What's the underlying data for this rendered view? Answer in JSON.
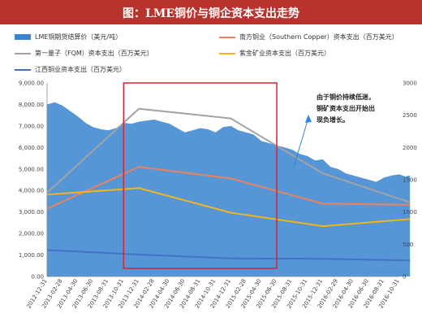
{
  "header": {
    "title": "图：LME铜价与铜企资本支出走势"
  },
  "chart_data": {
    "type": "area",
    "title": "图：LME铜价与铜企资本支出走势",
    "x_ticks": [
      "2012-12-31",
      "2013-02-28",
      "2013-04-30",
      "2013-06-30",
      "2013-08-31",
      "2013-10-31",
      "2013-12-31",
      "2014-02-28",
      "2014-04-30",
      "2014-06-30",
      "2014-08-31",
      "2014-10-31",
      "2014-12-31",
      "2015-02-28",
      "2015-04-30",
      "2015-06-30",
      "2015-08-31",
      "2015-10-31",
      "2015-12-31",
      "2016-02-29",
      "2016-04-30",
      "2016-06-30",
      "2016-08-31",
      "2016-10-31"
    ],
    "y_left_ticks": [
      "0.00",
      "1,000.00",
      "2,000.00",
      "3,000.00",
      "4,000.00",
      "5,000.00",
      "6,000.00",
      "7,000.00",
      "8,000.00",
      "9,000.00"
    ],
    "y_right_ticks": [
      "0",
      "500",
      "1000",
      "1500",
      "2000",
      "2500",
      "3000"
    ],
    "ylim_left": [
      0,
      9000
    ],
    "ylim_right": [
      0,
      3000
    ],
    "series": [
      {
        "name": "LME铜期货结算价（美元/吨）",
        "axis": "left",
        "style": "area",
        "color": "#3a84cf",
        "x": [
          0,
          0.5,
          1,
          1.5,
          2,
          2.5,
          3,
          3.5,
          4,
          4.5,
          5,
          5.5,
          6,
          6.5,
          7,
          7.5,
          8,
          8.5,
          9,
          9.5,
          10,
          10.5,
          11,
          11.5,
          12,
          12.5,
          13,
          13.5,
          14,
          14.5,
          15,
          15.5,
          16,
          16.5,
          17,
          17.5,
          18,
          18.5,
          19,
          19.5,
          20,
          20.5,
          21,
          21.5,
          22,
          22.5,
          23,
          23.2,
          23.4,
          23.7
        ],
        "values": [
          8000,
          8100,
          7950,
          7700,
          7450,
          7150,
          6950,
          6850,
          6800,
          6900,
          7150,
          7100,
          7200,
          7250,
          7300,
          7200,
          7100,
          6900,
          6700,
          6800,
          6900,
          6850,
          6700,
          6950,
          7000,
          6800,
          6700,
          6600,
          6300,
          6200,
          6100,
          6000,
          5900,
          5700,
          5600,
          5400,
          5450,
          5100,
          5000,
          4800,
          4700,
          4600,
          4500,
          4400,
          4600,
          4700,
          4750,
          4700,
          4650,
          4700
        ]
      },
      {
        "name": "南方铜业（Southern Copper）资本支出（百万美元）",
        "axis": "right",
        "style": "line",
        "color": "#e8835e",
        "x": [
          0,
          6,
          12,
          18,
          23.7
        ],
        "values": [
          1050,
          1700,
          1520,
          1130,
          1110
        ]
      },
      {
        "name": "第一量子（FQM）资本支出（百万美元）",
        "axis": "right",
        "style": "line",
        "color": "#a3a3a3",
        "x": [
          0,
          6,
          12,
          18,
          23.7
        ],
        "values": [
          1300,
          2600,
          2450,
          1600,
          1150
        ]
      },
      {
        "name": "紫金矿业资本支出（百万美元）",
        "axis": "right",
        "style": "line",
        "color": "#f2b51c",
        "x": [
          0,
          6,
          12,
          18,
          23.7
        ],
        "values": [
          1270,
          1370,
          990,
          780,
          890
        ]
      },
      {
        "name": "江西铜业资本支出（百万美元）",
        "axis": "right",
        "style": "line",
        "color": "#4472c4",
        "x": [
          0,
          6,
          12,
          18,
          23.7
        ],
        "values": [
          410,
          340,
          280,
          275,
          250
        ]
      }
    ],
    "annotation": "由于铜价持续低迷，铜矿资本支出开始出现负增长。",
    "annotation_lines": [
      "由于铜价持续低迷，",
      "铜矿资本支出开始出",
      "现负增长。"
    ],
    "highlight_box": {
      "x_from": "2013-10-31",
      "x_to": "2015-06-30",
      "color": "#d6242a"
    }
  }
}
